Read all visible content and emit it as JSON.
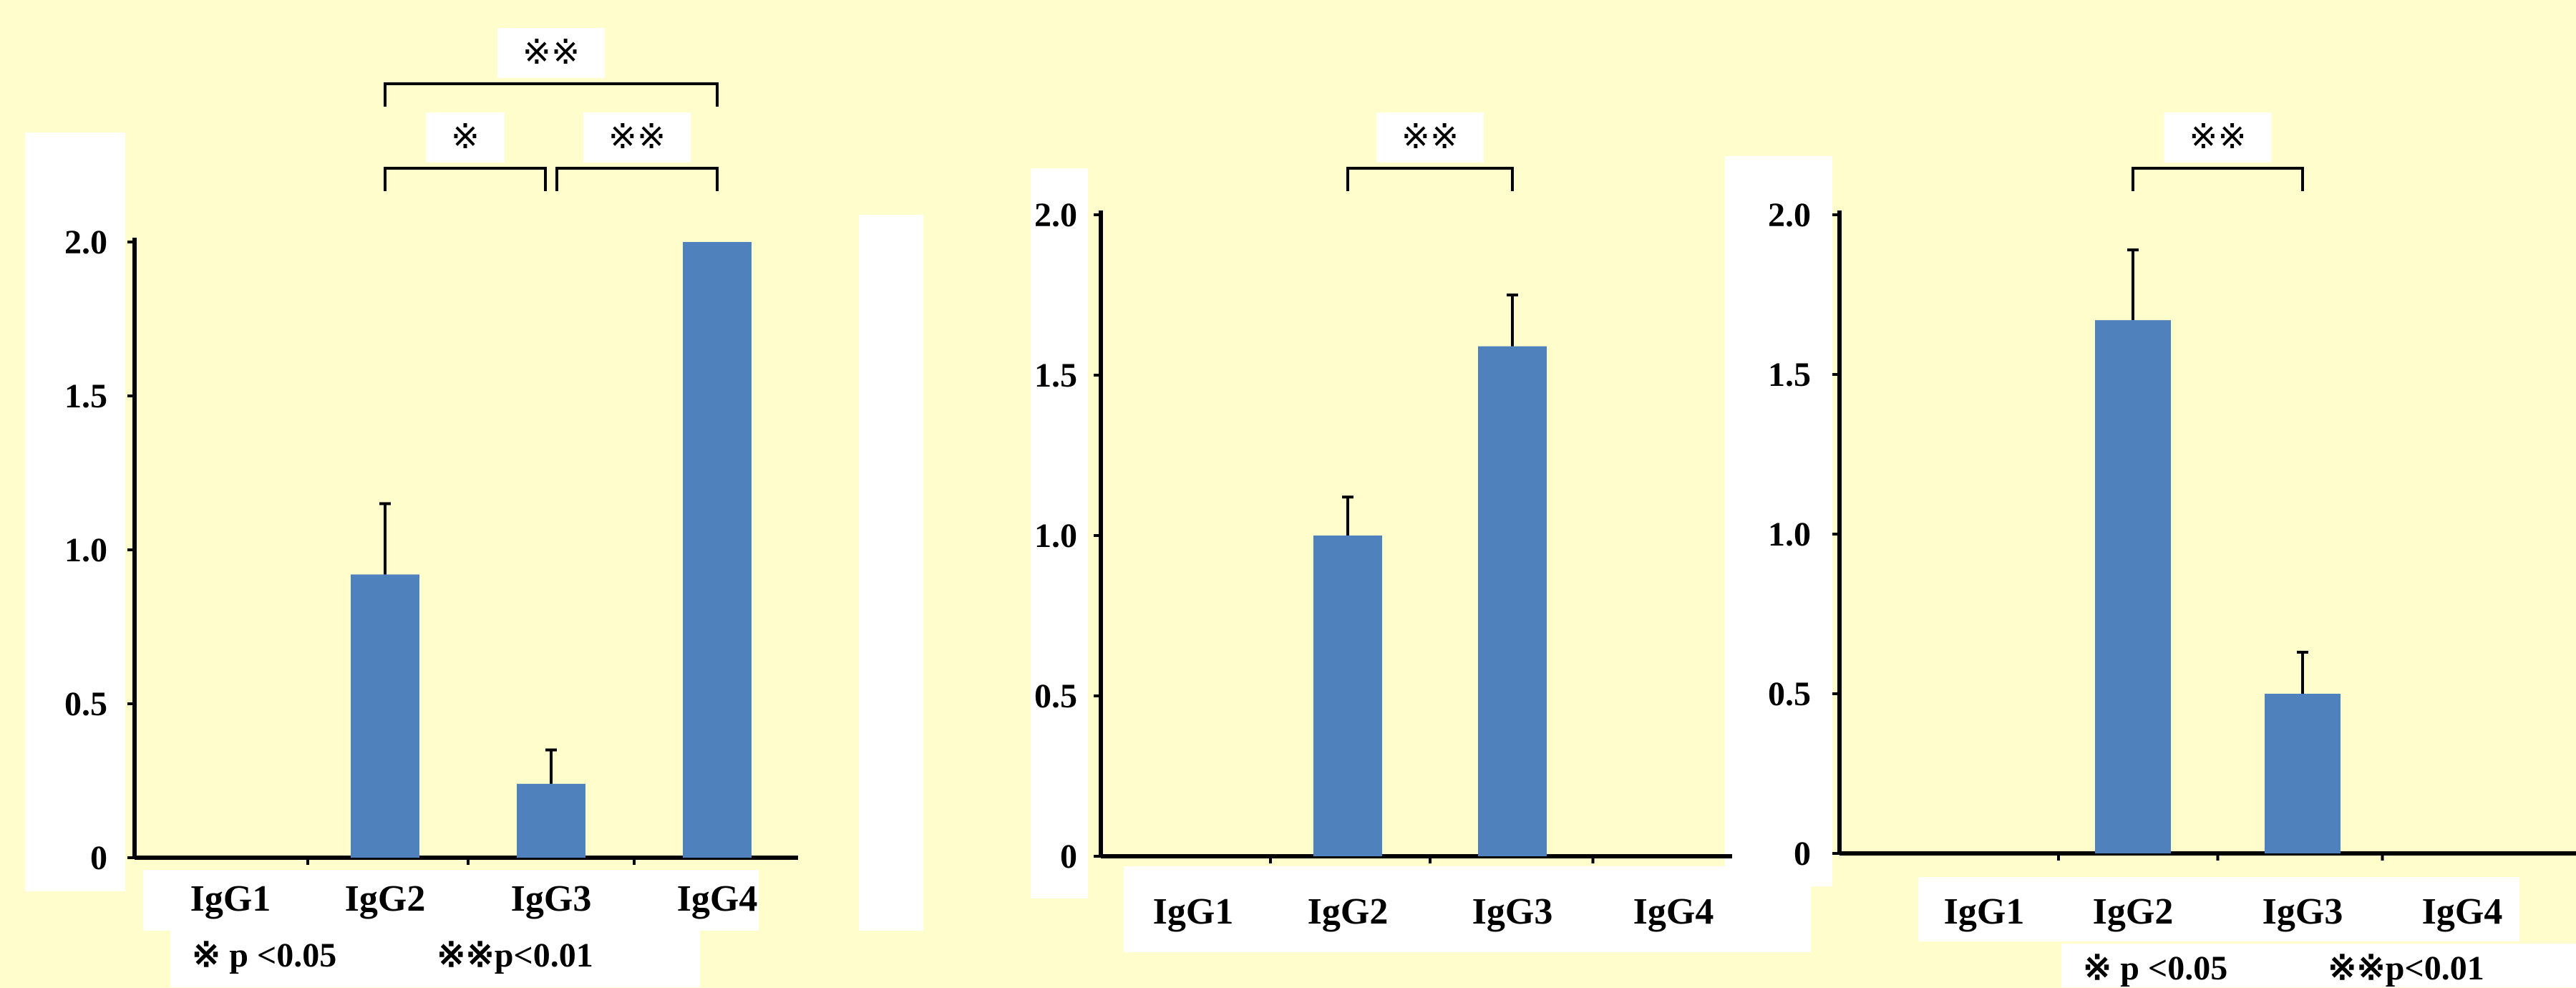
{
  "colors": {
    "background": "#FFFDCC",
    "bar": "#4F81BD",
    "axis": "#000000"
  },
  "chart_data": [
    {
      "type": "bar",
      "title": "",
      "xlabel": "",
      "ylabel": "",
      "categories": [
        "IgG1",
        "IgG2",
        "IgG3",
        "IgG4"
      ],
      "series": [
        {
          "values": [
            0,
            0.92,
            0.24,
            2.0
          ],
          "errors": [
            0,
            0.23,
            0.11,
            0
          ]
        }
      ],
      "ylim": [
        0,
        2.0
      ],
      "yticks": [
        0,
        0.5,
        1.0,
        1.5,
        2.0
      ],
      "ytick_labels": [
        "0",
        "0.5",
        "1.0",
        "1.5",
        "2.0"
      ],
      "significance": [
        {
          "from": 1,
          "to": 2,
          "label": "※",
          "level": 0
        },
        {
          "from": 2,
          "to": 3,
          "label": "※※",
          "level": 0
        },
        {
          "from": 1,
          "to": 3,
          "label": "※※",
          "level": 1
        }
      ],
      "legend": [
        "※ p <0.05",
        "※※p<0.01"
      ]
    },
    {
      "type": "bar",
      "title": "",
      "xlabel": "",
      "ylabel": "",
      "categories": [
        "IgG1",
        "IgG2",
        "IgG3",
        "IgG4"
      ],
      "series": [
        {
          "values": [
            0,
            1.0,
            1.59,
            0
          ],
          "errors": [
            0,
            0.12,
            0.16,
            0
          ]
        }
      ],
      "ylim": [
        0,
        2.0
      ],
      "yticks": [
        0,
        0.5,
        1.0,
        1.5,
        2.0
      ],
      "ytick_labels": [
        "0",
        "0.5",
        "1.0",
        "1.5",
        "2.0"
      ],
      "significance": [
        {
          "from": 1,
          "to": 2,
          "label": "※※",
          "level": 0
        }
      ],
      "legend": []
    },
    {
      "type": "bar",
      "title": "",
      "xlabel": "",
      "ylabel": "",
      "categories": [
        "IgG1",
        "IgG2",
        "IgG3",
        "IgG4"
      ],
      "series": [
        {
          "values": [
            0,
            1.67,
            0.5,
            0
          ],
          "errors": [
            0,
            0.22,
            0.13,
            0
          ]
        }
      ],
      "ylim": [
        0,
        2.0
      ],
      "yticks": [
        0,
        0.5,
        1.0,
        1.5,
        2.0
      ],
      "ytick_labels": [
        "0",
        "0.5",
        "1.0",
        "1.5",
        "2.0"
      ],
      "significance": [
        {
          "from": 1,
          "to": 2,
          "label": "※※",
          "level": 0
        }
      ],
      "legend": [
        "※ p <0.05",
        "※※p<0.01"
      ]
    }
  ]
}
